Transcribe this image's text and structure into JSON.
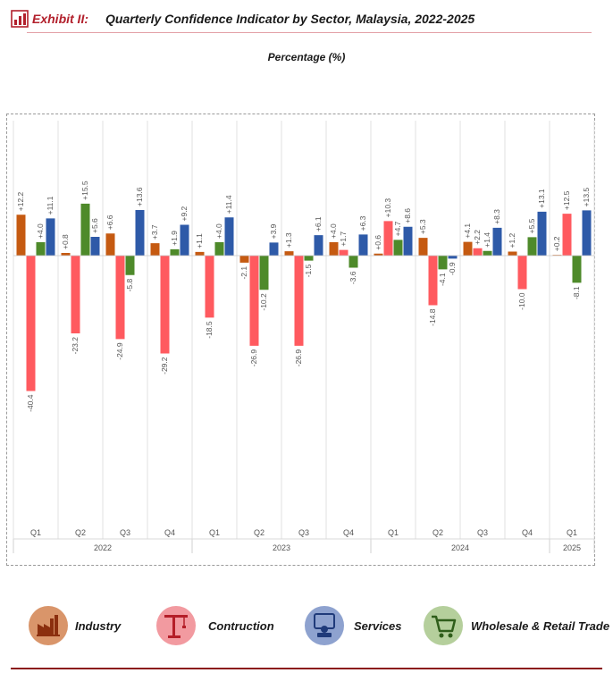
{
  "header": {
    "exhibit_label": "Exhibit II:",
    "title": "Quarterly Confidence Indicator by Sector, Malaysia, 2022-2025"
  },
  "subtitle": "Percentage (%)",
  "legend": [
    {
      "label": "Industry",
      "icon": "factory-icon",
      "circle_color": "#d9956a"
    },
    {
      "label": "Contruction",
      "icon": "crane-icon",
      "circle_color": "#f29aa0"
    },
    {
      "label": "Services",
      "icon": "service-desk-icon",
      "circle_color": "#8ea2cf"
    },
    {
      "label": "Wholesale & Retail Trade",
      "icon": "shopping-cart-icon",
      "circle_color": "#b5cf9c"
    }
  ],
  "chart_data": {
    "type": "bar",
    "categories": [
      "Q1",
      "Q2",
      "Q3",
      "Q4",
      "Q1",
      "Q2",
      "Q3",
      "Q4",
      "Q1",
      "Q2",
      "Q3",
      "Q4",
      "Q1"
    ],
    "year_groups": [
      {
        "label": "2022",
        "count": 4
      },
      {
        "label": "2023",
        "count": 4
      },
      {
        "label": "2024",
        "count": 4
      },
      {
        "label": "2025",
        "count": 1
      }
    ],
    "series": [
      {
        "color": "#c55a11",
        "values": [
          12.2,
          0.8,
          6.6,
          3.7,
          1.1,
          -2.1,
          1.3,
          4.0,
          0.6,
          5.3,
          4.1,
          1.2,
          0.2
        ]
      },
      {
        "color": "#ff5a5f",
        "values": [
          -40.4,
          -23.2,
          -24.9,
          -29.2,
          -18.5,
          -26.9,
          -26.9,
          1.7,
          10.3,
          -14.8,
          2.2,
          -10.0,
          12.5
        ]
      },
      {
        "color": "#4e8a2a",
        "values": [
          4.0,
          15.5,
          -5.8,
          1.9,
          4.0,
          -10.2,
          -1.5,
          -3.6,
          4.7,
          -4.1,
          1.4,
          5.5,
          -8.1
        ]
      },
      {
        "color": "#2e5aa8",
        "values": [
          11.1,
          5.6,
          13.6,
          9.2,
          11.4,
          3.9,
          6.1,
          6.3,
          8.6,
          -0.9,
          8.3,
          13.1,
          13.5
        ]
      }
    ],
    "data_labels": [
      [
        "+12.2",
        "+0.8",
        "+6.6",
        "+3.7",
        "+1.1",
        "-2.1",
        "+1.3",
        "+4.0",
        "+0.6",
        "+5.3",
        "+4.1",
        "+1.2",
        "+0.2"
      ],
      [
        "-40.4",
        "-23.2",
        "-24.9",
        "-29.2",
        "-18.5",
        "-26.9",
        "-26.9",
        "+1.7",
        "+10.3",
        "-14.8",
        "+2.2",
        "-10.0",
        "+12.5"
      ],
      [
        "+4.0",
        "+15.5",
        "-5.8",
        "+1.9",
        "+4.0",
        "-10.2",
        "-1.5",
        "-3.6",
        "+4.7",
        "-4.1",
        "+1.4",
        "+5.5",
        "-8.1"
      ],
      [
        "+11.1",
        "+5.6",
        "+13.6",
        "+9.2",
        "+11.4",
        "+3.9",
        "+6.1",
        "+6.3",
        "+8.6",
        "-0.9",
        "+8.3",
        "+13.1",
        "+13.5"
      ]
    ],
    "ylim": [
      -80,
      42
    ],
    "grid": false,
    "legend_position": "bottom"
  }
}
